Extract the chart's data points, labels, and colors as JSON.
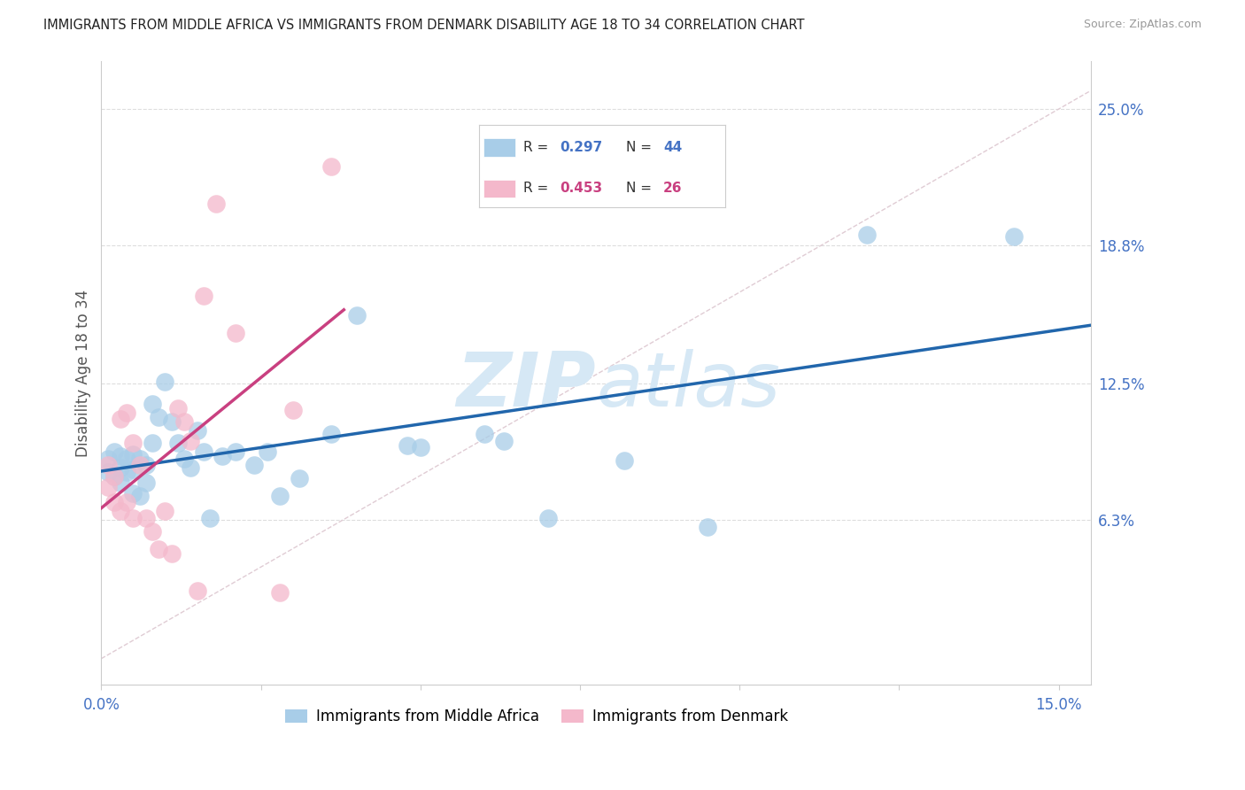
{
  "title": "IMMIGRANTS FROM MIDDLE AFRICA VS IMMIGRANTS FROM DENMARK DISABILITY AGE 18 TO 34 CORRELATION CHART",
  "source": "Source: ZipAtlas.com",
  "ylabel": "Disability Age 18 to 34",
  "xlim": [
    0.0,
    0.155
  ],
  "ylim": [
    -0.012,
    0.272
  ],
  "xtick_positions": [
    0.0,
    0.025,
    0.05,
    0.075,
    0.1,
    0.125,
    0.15
  ],
  "xtick_labels": [
    "0.0%",
    "",
    "",
    "",
    "",
    "",
    "15.0%"
  ],
  "ytick_right_vals": [
    0.063,
    0.125,
    0.188,
    0.25
  ],
  "ytick_right_labels": [
    "6.3%",
    "12.5%",
    "18.8%",
    "25.0%"
  ],
  "r1": "0.297",
  "n1": "44",
  "r2": "0.453",
  "n2": "26",
  "label1": "Immigrants from Middle Africa",
  "label2": "Immigrants from Denmark",
  "color_blue_dot": "#a8cde8",
  "color_pink_dot": "#f4b8cb",
  "color_blue_line": "#2166ac",
  "color_pink_line": "#c94080",
  "color_diag": "#e0ccd4",
  "color_r1": "#4472c4",
  "color_r2": "#c94080",
  "color_n1": "#4472c4",
  "color_n2": "#c94080",
  "watermark_color": "#d6e8f5",
  "blue_x": [
    0.001,
    0.001,
    0.002,
    0.002,
    0.003,
    0.003,
    0.003,
    0.004,
    0.004,
    0.005,
    0.005,
    0.005,
    0.006,
    0.006,
    0.007,
    0.007,
    0.008,
    0.008,
    0.009,
    0.01,
    0.011,
    0.012,
    0.013,
    0.014,
    0.015,
    0.016,
    0.017,
    0.019,
    0.021,
    0.024,
    0.026,
    0.028,
    0.031,
    0.036,
    0.04,
    0.048,
    0.05,
    0.06,
    0.063,
    0.095,
    0.12,
    0.143,
    0.07,
    0.082
  ],
  "blue_y": [
    0.091,
    0.085,
    0.094,
    0.083,
    0.092,
    0.087,
    0.08,
    0.091,
    0.085,
    0.086,
    0.093,
    0.075,
    0.091,
    0.074,
    0.088,
    0.08,
    0.116,
    0.098,
    0.11,
    0.126,
    0.108,
    0.098,
    0.091,
    0.087,
    0.104,
    0.094,
    0.064,
    0.092,
    0.094,
    0.088,
    0.094,
    0.074,
    0.082,
    0.102,
    0.156,
    0.097,
    0.096,
    0.102,
    0.099,
    0.06,
    0.193,
    0.192,
    0.064,
    0.09
  ],
  "pink_x": [
    0.001,
    0.001,
    0.002,
    0.002,
    0.003,
    0.003,
    0.004,
    0.004,
    0.005,
    0.005,
    0.006,
    0.007,
    0.008,
    0.009,
    0.01,
    0.011,
    0.012,
    0.013,
    0.014,
    0.015,
    0.016,
    0.018,
    0.021,
    0.03,
    0.036,
    0.028
  ],
  "pink_y": [
    0.088,
    0.078,
    0.083,
    0.071,
    0.109,
    0.067,
    0.112,
    0.071,
    0.098,
    0.064,
    0.088,
    0.064,
    0.058,
    0.05,
    0.067,
    0.048,
    0.114,
    0.108,
    0.099,
    0.031,
    0.165,
    0.207,
    0.148,
    0.113,
    0.224,
    0.03
  ],
  "blue_line_x0": 0.0,
  "blue_line_x1": 0.155,
  "pink_line_x0": 0.0,
  "pink_line_x1": 0.038
}
